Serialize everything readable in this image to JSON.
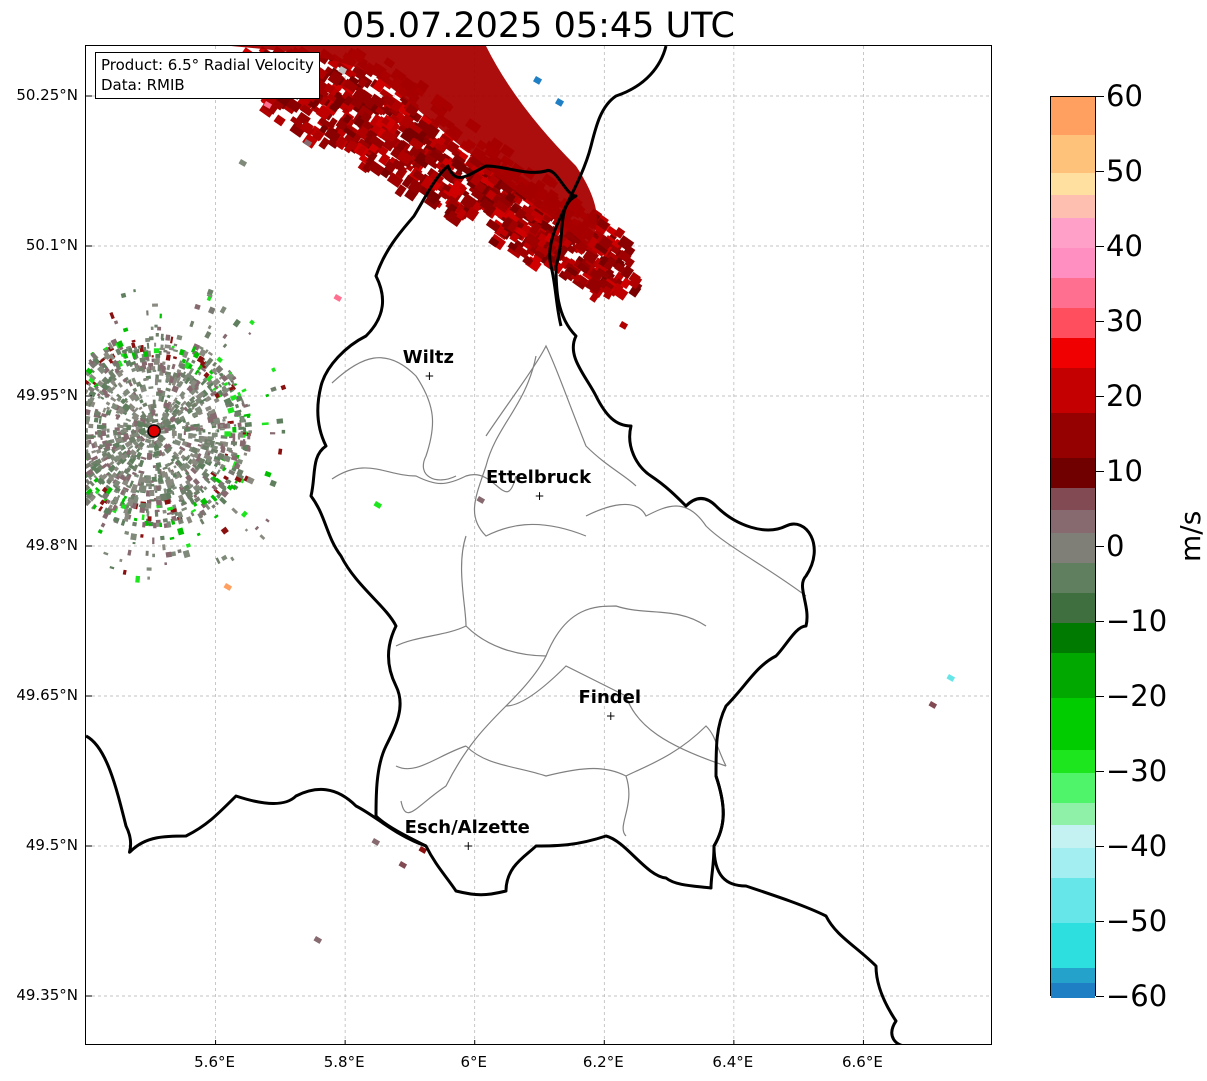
{
  "title": "05.07.2025 05:45 UTC",
  "info": {
    "product": "Product: 6.5° Radial Velocity",
    "source": "Data: RMIB"
  },
  "axes": {
    "lat_ticks": [
      "50.25°N",
      "50.1°N",
      "49.95°N",
      "49.8°N",
      "49.65°N",
      "49.5°N",
      "49.35°N"
    ],
    "lat_values": [
      50.25,
      50.1,
      49.95,
      49.8,
      49.65,
      49.5,
      49.35
    ],
    "lon_ticks": [
      "5.6°E",
      "5.8°E",
      "6°E",
      "6.2°E",
      "6.4°E",
      "6.6°E"
    ],
    "lon_values": [
      5.6,
      5.8,
      6.0,
      6.2,
      6.4,
      6.6
    ],
    "lon_range": [
      5.4,
      6.8
    ],
    "lat_range": [
      49.3,
      50.3
    ]
  },
  "cities": [
    {
      "name": "Wiltz",
      "lon": 5.93,
      "lat": 49.97
    },
    {
      "name": "Ettelbruck",
      "lon": 6.1,
      "lat": 49.85
    },
    {
      "name": "Findel",
      "lon": 6.21,
      "lat": 49.63
    },
    {
      "name": "Esch/Alzette",
      "lon": 5.99,
      "lat": 49.5
    }
  ],
  "radar_site": {
    "lon": 5.505,
    "lat": 49.915,
    "color": "#e00000"
  },
  "colorbar": {
    "unit": "m/s",
    "range": [
      -60,
      60
    ],
    "ticks": [
      "60",
      "50",
      "40",
      "30",
      "20",
      "10",
      "0",
      "−10",
      "−20",
      "−30",
      "−40",
      "−50",
      "−60"
    ],
    "tick_values": [
      60,
      50,
      40,
      30,
      20,
      10,
      0,
      -10,
      -20,
      -30,
      -40,
      -50,
      -60
    ],
    "stops": [
      {
        "from": -60,
        "to": -58,
        "color": "#1f7fc4"
      },
      {
        "from": -58,
        "to": -56,
        "color": "#24a2cc"
      },
      {
        "from": -56,
        "to": -50,
        "color": "#2edfe0"
      },
      {
        "from": -50,
        "to": -44,
        "color": "#66e6e8"
      },
      {
        "from": -44,
        "to": -40,
        "color": "#a3eef0"
      },
      {
        "from": -40,
        "to": -37,
        "color": "#c4f2f2"
      },
      {
        "from": -37,
        "to": -34,
        "color": "#8ff0a8"
      },
      {
        "from": -34,
        "to": -30,
        "color": "#4ff46a"
      },
      {
        "from": -30,
        "to": -27,
        "color": "#1ee61e"
      },
      {
        "from": -27,
        "to": -20,
        "color": "#00cc00"
      },
      {
        "from": -20,
        "to": -14,
        "color": "#00a800"
      },
      {
        "from": -14,
        "to": -10,
        "color": "#007a00"
      },
      {
        "from": -10,
        "to": -6,
        "color": "#3f6f3f"
      },
      {
        "from": -6,
        "to": -2,
        "color": "#5f7f5f"
      },
      {
        "from": -2,
        "to": 2,
        "color": "#7f7f77"
      },
      {
        "from": 2,
        "to": 5,
        "color": "#866a70"
      },
      {
        "from": 5,
        "to": 8,
        "color": "#824a52"
      },
      {
        "from": 8,
        "to": 12,
        "color": "#700000"
      },
      {
        "from": 12,
        "to": 18,
        "color": "#950000"
      },
      {
        "from": 18,
        "to": 24,
        "color": "#c40000"
      },
      {
        "from": 24,
        "to": 28,
        "color": "#f00000"
      },
      {
        "from": 28,
        "to": 32,
        "color": "#ff4f5f"
      },
      {
        "from": 32,
        "to": 36,
        "color": "#ff6f8f"
      },
      {
        "from": 36,
        "to": 40,
        "color": "#ff8fc0"
      },
      {
        "from": 40,
        "to": 44,
        "color": "#ffa0c8"
      },
      {
        "from": 44,
        "to": 47,
        "color": "#ffbfb0"
      },
      {
        "from": 47,
        "to": 50,
        "color": "#ffe0a0"
      },
      {
        "from": 50,
        "to": 55,
        "color": "#ffc27a"
      },
      {
        "from": 55,
        "to": 60,
        "color": "#ffa060"
      }
    ]
  },
  "colors": {
    "border": "#000000",
    "canton": "#808080",
    "grid": "#b0b0b0",
    "inbound_core": "#b00000",
    "inbound_dark": "#7a0000",
    "clutter_gray": "#7f8a7a",
    "clutter_green": "#00c000",
    "clutter_red": "#8a1010"
  }
}
